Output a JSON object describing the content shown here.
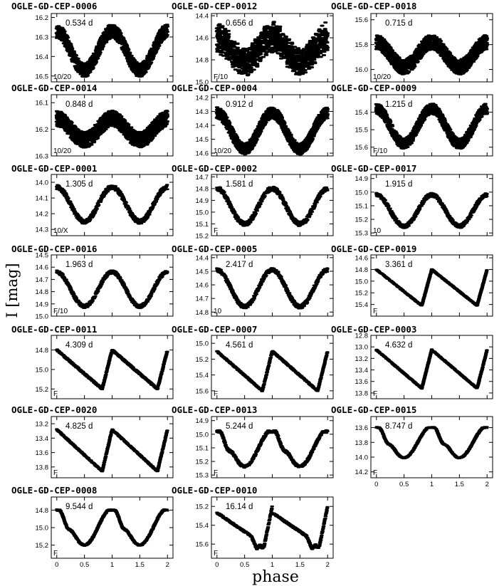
{
  "figure": {
    "ylabel": "I [mag]",
    "xlabel": "phase"
  },
  "chart_data": [
    {
      "type": "scatter",
      "title": "OGLE-GD-CEP-0006",
      "period": "0.534 d",
      "mode": "10/20",
      "ylim": [
        16.18,
        16.53
      ],
      "yticks": [
        16.2,
        16.3,
        16.4,
        16.5
      ],
      "xlim": [
        -0.1,
        2.1
      ],
      "xticks": [
        0,
        0.5,
        1,
        1.5,
        2
      ],
      "curve": "sine",
      "mag_max": 16.27,
      "mag_min": 16.47,
      "scatter": 0.035
    },
    {
      "type": "scatter",
      "title": "OGLE-GD-CEP-0012",
      "period": "0.656 d",
      "mode": "F/10",
      "ylim": [
        14.38,
        15.0
      ],
      "yticks": [
        14.4,
        14.6,
        14.8,
        15.0
      ],
      "xlim": [
        -0.1,
        2.1
      ],
      "xticks": [
        0,
        0.5,
        1,
        1.5,
        2
      ],
      "curve": "beat",
      "mag_max": 14.6,
      "mag_min": 14.82,
      "scatter": 0.09
    },
    {
      "type": "scatter",
      "title": "OGLE-GD-CEP-0018",
      "period": "0.715 d",
      "mode": "10/20",
      "ylim": [
        15.55,
        16.1
      ],
      "yticks": [
        15.6,
        15.8,
        16.0
      ],
      "xlim": [
        -0.1,
        2.1
      ],
      "xticks": [
        0,
        0.5,
        1,
        1.5,
        2
      ],
      "curve": "sine",
      "mag_max": 15.78,
      "mag_min": 15.98,
      "scatter": 0.06
    },
    {
      "type": "scatter",
      "title": "OGLE-GD-CEP-0014",
      "period": "0.848 d",
      "mode": "10/20",
      "ylim": [
        16.07,
        16.3
      ],
      "yticks": [
        16.1,
        16.2,
        16.3
      ],
      "xlim": [
        -0.1,
        2.1
      ],
      "xticks": [
        0,
        0.5,
        1,
        1.5,
        2
      ],
      "curve": "sine",
      "mag_max": 16.16,
      "mag_min": 16.24,
      "scatter": 0.03
    },
    {
      "type": "scatter",
      "title": "OGLE-GD-CEP-0004",
      "period": "0.912 d",
      "mode": "10/20",
      "ylim": [
        14.18,
        14.62
      ],
      "yticks": [
        14.2,
        14.3,
        14.4,
        14.5,
        14.6
      ],
      "xlim": [
        -0.1,
        2.1
      ],
      "xticks": [
        0,
        0.5,
        1,
        1.5,
        2
      ],
      "curve": "sine",
      "mag_max": 14.31,
      "mag_min": 14.57,
      "scatter": 0.04
    },
    {
      "type": "scatter",
      "title": "OGLE-GD-CEP-0009",
      "period": "1.215 d",
      "mode": "F/10",
      "ylim": [
        15.3,
        15.65
      ],
      "yticks": [
        15.4,
        15.5,
        15.6
      ],
      "xlim": [
        -0.1,
        2.1
      ],
      "xticks": [
        0,
        0.5,
        1,
        1.5,
        2
      ],
      "curve": "sine",
      "mag_max": 15.38,
      "mag_min": 15.58,
      "scatter": 0.03
    },
    {
      "type": "scatter",
      "title": "OGLE-GD-CEP-0001",
      "period": "1.305 d",
      "mode": "10/X",
      "ylim": [
        13.95,
        14.34
      ],
      "yticks": [
        14.0,
        14.1,
        14.2,
        14.3
      ],
      "xlim": [
        -0.1,
        2.1
      ],
      "xticks": [
        0,
        0.5,
        1,
        1.5,
        2
      ],
      "curve": "sine",
      "mag_max": 14.03,
      "mag_min": 14.25,
      "scatter": 0.015
    },
    {
      "type": "scatter",
      "title": "OGLE-GD-CEP-0002",
      "period": "1.581 d",
      "mode": "F",
      "ylim": [
        14.68,
        15.2
      ],
      "yticks": [
        14.7,
        14.8,
        14.9,
        15.0,
        15.1,
        15.2
      ],
      "xlim": [
        -0.1,
        2.1
      ],
      "xticks": [
        0,
        0.5,
        1,
        1.5,
        2
      ],
      "curve": "sine",
      "mag_max": 14.8,
      "mag_min": 15.1,
      "scatter": 0.02
    },
    {
      "type": "scatter",
      "title": "OGLE-GD-CEP-0017",
      "period": "1.915 d",
      "mode": "10",
      "ylim": [
        14.87,
        15.32
      ],
      "yticks": [
        14.9,
        15.0,
        15.1,
        15.2,
        15.3
      ],
      "xlim": [
        -0.1,
        2.1
      ],
      "xticks": [
        0,
        0.5,
        1,
        1.5,
        2
      ],
      "curve": "sine",
      "mag_max": 15.02,
      "mag_min": 15.25,
      "scatter": 0.015
    },
    {
      "type": "scatter",
      "title": "OGLE-GD-CEP-0016",
      "period": "1.963 d",
      "mode": "F/10",
      "ylim": [
        14.5,
        15.0
      ],
      "yticks": [
        14.5,
        14.6,
        14.7,
        14.8,
        14.9,
        15.0
      ],
      "xlim": [
        -0.1,
        2.1
      ],
      "xticks": [
        0,
        0.5,
        1,
        1.5,
        2
      ],
      "curve": "sine",
      "mag_max": 14.64,
      "mag_min": 14.92,
      "scatter": 0.015
    },
    {
      "type": "scatter",
      "title": "OGLE-GD-CEP-0005",
      "period": "2.417 d",
      "mode": "10",
      "ylim": [
        14.38,
        14.83
      ],
      "yticks": [
        14.4,
        14.5,
        14.6,
        14.7,
        14.8
      ],
      "xlim": [
        -0.1,
        2.1
      ],
      "xticks": [
        0,
        0.5,
        1,
        1.5,
        2
      ],
      "curve": "sine",
      "mag_max": 14.49,
      "mag_min": 14.76,
      "scatter": 0.015
    },
    {
      "type": "scatter",
      "title": "OGLE-GD-CEP-0019",
      "period": "3.361 d",
      "mode": "F",
      "ylim": [
        14.55,
        15.6
      ],
      "yticks": [
        14.6,
        14.8,
        15.0,
        15.2,
        15.4
      ],
      "xlim": [
        -0.1,
        2.1
      ],
      "xticks": [
        0,
        0.5,
        1,
        1.5,
        2
      ],
      "curve": "saw",
      "mag_max": 14.8,
      "mag_min": 15.42,
      "scatter": 0.01
    },
    {
      "type": "scatter",
      "title": "OGLE-GD-CEP-0011",
      "period": "4.309 d",
      "mode": "F",
      "ylim": [
        14.65,
        15.3
      ],
      "yticks": [
        14.8,
        15.0,
        15.2
      ],
      "xlim": [
        -0.1,
        2.1
      ],
      "xticks": [
        0,
        0.5,
        1,
        1.5,
        2
      ],
      "curve": "saw",
      "mag_max": 14.8,
      "mag_min": 15.2,
      "scatter": 0.01
    },
    {
      "type": "scatter",
      "title": "OGLE-GD-CEP-0007",
      "period": "4.561 d",
      "mode": "F",
      "ylim": [
        14.9,
        15.7
      ],
      "yticks": [
        15.0,
        15.2,
        15.4,
        15.6
      ],
      "xlim": [
        -0.1,
        2.1
      ],
      "xticks": [
        0,
        0.5,
        1,
        1.5,
        2
      ],
      "curve": "saw",
      "mag_max": 15.1,
      "mag_min": 15.6,
      "scatter": 0.01
    },
    {
      "type": "scatter",
      "title": "OGLE-GD-CEP-0003",
      "period": "4.632 d",
      "mode": "F",
      "ylim": [
        12.8,
        13.9
      ],
      "yticks": [
        12.8,
        13.0,
        13.2,
        13.4,
        13.6,
        13.8
      ],
      "xlim": [
        -0.1,
        2.1
      ],
      "xticks": [
        0,
        0.5,
        1,
        1.5,
        2
      ],
      "curve": "saw",
      "mag_max": 13.05,
      "mag_min": 13.72,
      "scatter": 0.01
    },
    {
      "type": "scatter",
      "title": "OGLE-GD-CEP-0020",
      "period": "4.825 d",
      "mode": "F",
      "ylim": [
        13.1,
        13.95
      ],
      "yticks": [
        13.2,
        13.4,
        13.6,
        13.8
      ],
      "xlim": [
        -0.1,
        2.1
      ],
      "xticks": [
        0,
        0.5,
        1,
        1.5,
        2
      ],
      "curve": "saw",
      "mag_max": 13.28,
      "mag_min": 13.86,
      "scatter": 0.01
    },
    {
      "type": "scatter",
      "title": "OGLE-GD-CEP-0013",
      "period": "5.244 d",
      "mode": "F",
      "ylim": [
        14.87,
        15.32
      ],
      "yticks": [
        14.9,
        15.0,
        15.1,
        15.2,
        15.3
      ],
      "xlim": [
        -0.1,
        2.1
      ],
      "xticks": [
        0,
        0.5,
        1,
        1.5,
        2
      ],
      "curve": "bump",
      "mag_max": 14.98,
      "mag_min": 15.25,
      "scatter": 0.01
    },
    {
      "type": "scatter",
      "title": "OGLE-GD-CEP-0015",
      "period": "8.747 d",
      "mode": "F",
      "ylim": [
        13.45,
        14.28
      ],
      "yticks": [
        13.6,
        13.8,
        14.0,
        14.2
      ],
      "xlim": [
        -0.1,
        2.1
      ],
      "xticks": [
        0,
        0.5,
        1,
        1.5,
        2
      ],
      "curve": "bump",
      "mag_max": 13.6,
      "mag_min": 14.03,
      "scatter": 0.01
    },
    {
      "type": "scatter",
      "title": "OGLE-GD-CEP-0008",
      "period": "9.544 d",
      "mode": "F",
      "ylim": [
        14.65,
        15.35
      ],
      "yticks": [
        14.8,
        15.0,
        15.2
      ],
      "xlim": [
        -0.1,
        2.1
      ],
      "xticks": [
        0,
        0.5,
        1,
        1.5,
        2
      ],
      "curve": "bump",
      "mag_max": 14.8,
      "mag_min": 15.22,
      "scatter": 0.01
    },
    {
      "type": "scatter",
      "title": "OGLE-GD-CEP-0010",
      "period": "16.14 d",
      "mode": "F",
      "ylim": [
        15.1,
        15.75
      ],
      "yticks": [
        15.2,
        15.4,
        15.6
      ],
      "xlim": [
        -0.1,
        2.1
      ],
      "xticks": [
        0,
        0.5,
        1,
        1.5,
        2
      ],
      "curve": "long",
      "mag_max": 15.2,
      "mag_min": 15.65,
      "scatter": 0.01
    }
  ]
}
